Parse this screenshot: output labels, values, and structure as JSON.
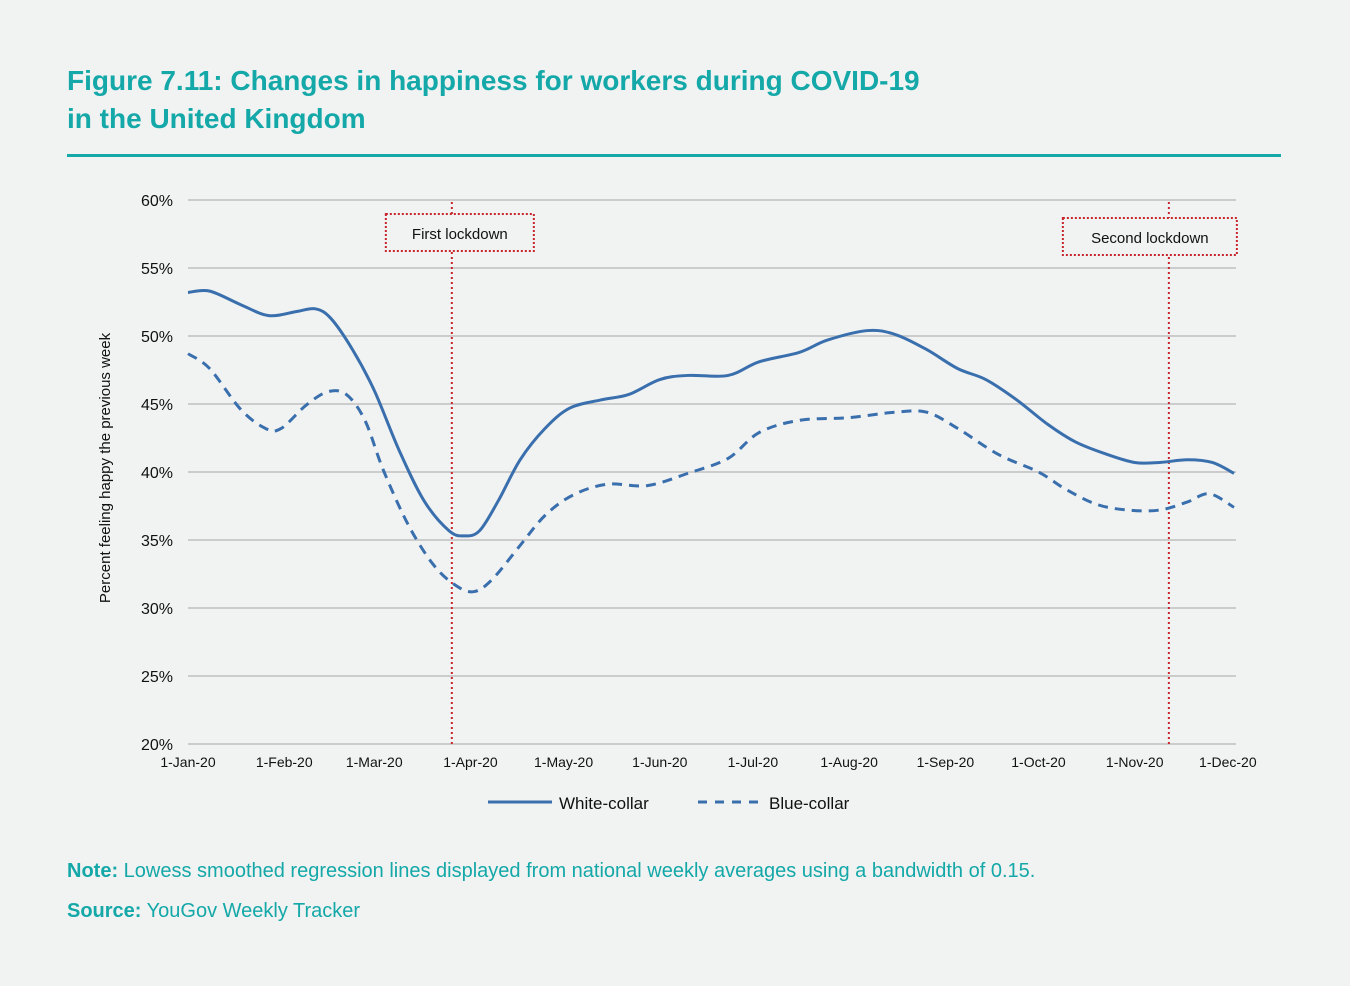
{
  "title_line1": "Figure 7.11: Changes in happiness for workers during COVID-19",
  "title_line2": "in the United Kingdom",
  "note_label": "Note:",
  "note_text": " Lowess smoothed regression lines displayed from national weekly averages using a bandwidth of 0.15.",
  "source_label": "Source:",
  "source_text": " YouGov Weekly Tracker",
  "colors": {
    "accent": "#14a8a8",
    "series": "#3a6fad",
    "lockdown": "#c9252c",
    "grid": "#cccccc"
  },
  "chart_data": {
    "type": "line",
    "ylabel": "Percent feeling happy the previous week",
    "xlabel": "",
    "ylim": [
      20,
      60
    ],
    "yticks": [
      20,
      25,
      30,
      35,
      40,
      45,
      50,
      55,
      60
    ],
    "ytick_labels": [
      "20%",
      "25%",
      "30%",
      "35%",
      "40%",
      "45%",
      "50%",
      "55%",
      "60%"
    ],
    "xlim": [
      "2020-01-01",
      "2020-12-03"
    ],
    "xticks": [
      "2020-01-01",
      "2020-02-01",
      "2020-03-01",
      "2020-04-01",
      "2020-05-01",
      "2020-06-01",
      "2020-07-01",
      "2020-08-01",
      "2020-09-01",
      "2020-10-01",
      "2020-11-01",
      "2020-12-01"
    ],
    "xtick_labels": [
      "1-Jan-20",
      "1-Feb-20",
      "1-Mar-20",
      "1-Apr-20",
      "1-May-20",
      "1-Jun-20",
      "1-Jul-20",
      "1-Aug-20",
      "1-Sep-20",
      "1-Oct-20",
      "1-Nov-20",
      "1-Dec-20"
    ],
    "grid": "horizontal",
    "legend_position": "bottom",
    "annotations": [
      {
        "label": "First lockdown",
        "date": "2020-03-26"
      },
      {
        "label": "Second lockdown",
        "date": "2020-11-12"
      }
    ],
    "series": [
      {
        "name": "White-collar",
        "style": "solid",
        "points": [
          [
            "2020-01-01",
            53.2
          ],
          [
            "2020-01-08",
            53.3
          ],
          [
            "2020-01-18",
            52.3
          ],
          [
            "2020-01-27",
            51.5
          ],
          [
            "2020-02-05",
            51.8
          ],
          [
            "2020-02-11",
            52.0
          ],
          [
            "2020-02-16",
            51.3
          ],
          [
            "2020-02-23",
            49.0
          ],
          [
            "2020-03-01",
            46.0
          ],
          [
            "2020-03-09",
            41.6
          ],
          [
            "2020-03-17",
            37.9
          ],
          [
            "2020-03-25",
            35.7
          ],
          [
            "2020-03-30",
            35.3
          ],
          [
            "2020-04-04",
            35.7
          ],
          [
            "2020-04-10",
            37.9
          ],
          [
            "2020-04-17",
            40.9
          ],
          [
            "2020-04-25",
            43.2
          ],
          [
            "2020-05-03",
            44.7
          ],
          [
            "2020-05-13",
            45.3
          ],
          [
            "2020-05-22",
            45.7
          ],
          [
            "2020-06-01",
            46.8
          ],
          [
            "2020-06-10",
            47.1
          ],
          [
            "2020-06-23",
            47.1
          ],
          [
            "2020-07-03",
            48.1
          ],
          [
            "2020-07-16",
            48.8
          ],
          [
            "2020-07-25",
            49.7
          ],
          [
            "2020-08-07",
            50.4
          ],
          [
            "2020-08-16",
            50.1
          ],
          [
            "2020-08-26",
            49.0
          ],
          [
            "2020-09-05",
            47.6
          ],
          [
            "2020-09-14",
            46.8
          ],
          [
            "2020-09-24",
            45.3
          ],
          [
            "2020-10-04",
            43.5
          ],
          [
            "2020-10-13",
            42.2
          ],
          [
            "2020-10-23",
            41.3
          ],
          [
            "2020-11-01",
            40.7
          ],
          [
            "2020-11-09",
            40.7
          ],
          [
            "2020-11-18",
            40.9
          ],
          [
            "2020-11-26",
            40.7
          ],
          [
            "2020-12-03",
            39.9
          ]
        ]
      },
      {
        "name": "Blue-collar",
        "style": "dashed",
        "points": [
          [
            "2020-01-01",
            48.7
          ],
          [
            "2020-01-08",
            47.6
          ],
          [
            "2020-01-18",
            44.6
          ],
          [
            "2020-01-26",
            43.2
          ],
          [
            "2020-01-31",
            43.2
          ],
          [
            "2020-02-08",
            44.9
          ],
          [
            "2020-02-15",
            45.9
          ],
          [
            "2020-02-21",
            45.7
          ],
          [
            "2020-02-27",
            43.8
          ],
          [
            "2020-03-04",
            40.1
          ],
          [
            "2020-03-12",
            36.1
          ],
          [
            "2020-03-20",
            33.2
          ],
          [
            "2020-03-27",
            31.7
          ],
          [
            "2020-04-02",
            31.2
          ],
          [
            "2020-04-08",
            32.1
          ],
          [
            "2020-04-17",
            34.6
          ],
          [
            "2020-04-25",
            36.8
          ],
          [
            "2020-05-04",
            38.3
          ],
          [
            "2020-05-15",
            39.1
          ],
          [
            "2020-05-28",
            39.0
          ],
          [
            "2020-06-10",
            39.9
          ],
          [
            "2020-06-23",
            41.0
          ],
          [
            "2020-07-03",
            42.9
          ],
          [
            "2020-07-16",
            43.8
          ],
          [
            "2020-08-01",
            44.0
          ],
          [
            "2020-08-16",
            44.4
          ],
          [
            "2020-08-26",
            44.4
          ],
          [
            "2020-09-05",
            43.2
          ],
          [
            "2020-09-18",
            41.3
          ],
          [
            "2020-10-01",
            40.0
          ],
          [
            "2020-10-10",
            38.7
          ],
          [
            "2020-10-20",
            37.6
          ],
          [
            "2020-10-30",
            37.2
          ],
          [
            "2020-11-09",
            37.2
          ],
          [
            "2020-11-18",
            37.8
          ],
          [
            "2020-11-25",
            38.4
          ],
          [
            "2020-12-03",
            37.4
          ]
        ]
      }
    ]
  }
}
